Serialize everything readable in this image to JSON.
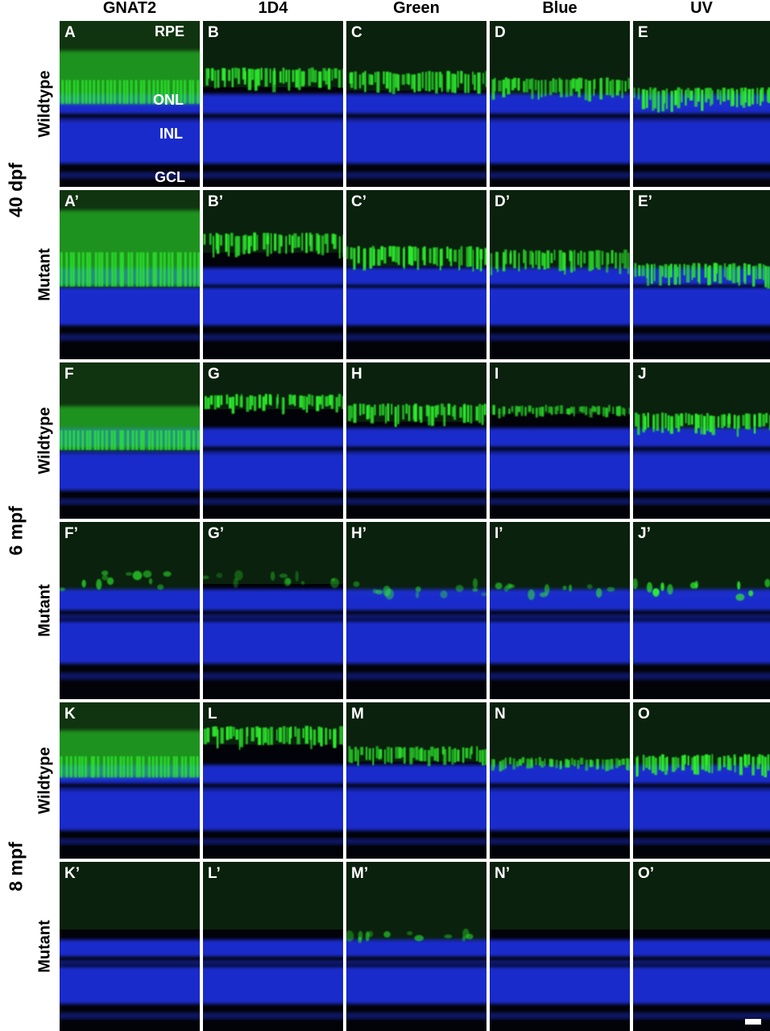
{
  "columns": [
    "GNAT2",
    "1D4",
    "Green",
    "Blue",
    "UV"
  ],
  "ages": [
    "40 dpf",
    "6 mpf",
    "8 mpf"
  ],
  "genotypes": [
    "Wildtype",
    "Mutant"
  ],
  "layers": {
    "rpe": "RPE",
    "onl": "ONL",
    "inl": "INL",
    "gcl": "GCL"
  },
  "panel_labels": [
    [
      "A",
      "B",
      "C",
      "D",
      "E"
    ],
    [
      "A’",
      "B’",
      "C’",
      "D’",
      "E’"
    ],
    [
      "F",
      "G",
      "H",
      "I",
      "J"
    ],
    [
      "F’",
      "G’",
      "H’",
      "I’",
      "J’"
    ],
    [
      "K",
      "L",
      "M",
      "N",
      "O"
    ],
    [
      "K’",
      "L’",
      "M’",
      "N’",
      "O’"
    ]
  ],
  "colors": {
    "background": "#020308",
    "nuclei_stain": "#1a2fd6",
    "marker_stain": "#2df22d",
    "dim_marker": "#123a12"
  }
}
